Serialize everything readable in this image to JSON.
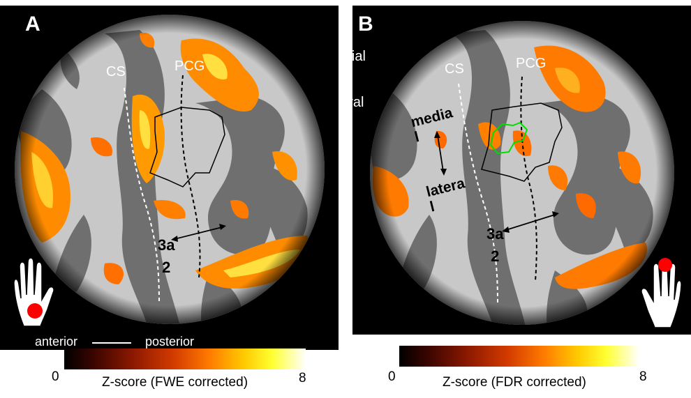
{
  "panel_a": {
    "letter": "A",
    "labels": {
      "cs": "CS",
      "pcg": "PCG",
      "area3a": "3a",
      "area2": "2"
    },
    "orientation": {
      "anterior": "anterior",
      "posterior": "posterior"
    },
    "colorbar": {
      "min": "0",
      "max": "8",
      "title": "Z-score (FWE corrected)"
    }
  },
  "panel_b": {
    "letter": "B",
    "labels": {
      "cs": "CS",
      "pcg": "PCG",
      "area3a": "3a",
      "area2": "2",
      "medial_rot": "media l",
      "lateral_rot": "latera l"
    },
    "orientation": {
      "medial": "medial",
      "lateral": "lateral"
    },
    "colorbar": {
      "min": "0",
      "max": "8",
      "title": "Z-score (FDR corrected)"
    }
  },
  "colors": {
    "background": "#000000",
    "sulci": "#6f6f6f",
    "gyri": "#c8c8c8",
    "activation_low": "#d23a00",
    "activation_high": "#ffff60",
    "roi_outline": "#00dd00",
    "hand_marker": "#ff0000"
  }
}
